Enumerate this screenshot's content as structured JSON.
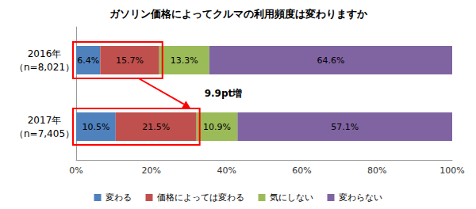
{
  "chart_data": {
    "type": "bar",
    "title": "ガソリン価格によってクルマの利用頻度は変わりますか",
    "orientation": "horizontal",
    "stacked": true,
    "data_labels": true,
    "grid": false,
    "legend": "bottom",
    "annotation": "9.9pt増",
    "categories": [
      "2016年\n（n=8,021）",
      "2017年\n（n=7,405）"
    ],
    "series": [
      {
        "name": "変わる",
        "color": "#4f81bd",
        "values": [
          6.4,
          10.5
        ],
        "value_labels": [
          "6.4%",
          "10.5%"
        ]
      },
      {
        "name": "価格によっては変わる",
        "color": "#c0504d",
        "values": [
          15.7,
          21.5
        ],
        "value_labels": [
          "15.7%",
          "21.5%"
        ]
      },
      {
        "name": "気にしない",
        "color": "#9bbb59",
        "values": [
          13.3,
          10.9
        ],
        "value_labels": [
          "13.3%",
          "10.9%"
        ]
      },
      {
        "name": "変わらない",
        "color": "#8064a2",
        "values": [
          64.6,
          57.1
        ],
        "value_labels": [
          "64.6%",
          "57.1%"
        ]
      }
    ],
    "xlim": [
      0,
      100
    ],
    "xticks": [
      {
        "value": 0,
        "label": "0%"
      },
      {
        "value": 20,
        "label": "20%"
      },
      {
        "value": 40,
        "label": "40%"
      },
      {
        "value": 60,
        "label": "60%"
      },
      {
        "value": 80,
        "label": "80%"
      },
      {
        "value": 100,
        "label": "100%"
      }
    ]
  }
}
